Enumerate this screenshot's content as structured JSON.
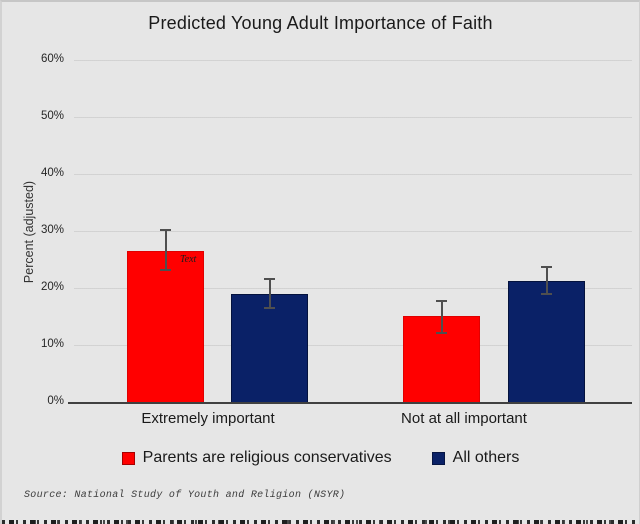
{
  "title": "Predicted Young Adult Importance of Faith",
  "source_note": "Source: National Study of Youth and Religion (NSYR)",
  "annotation_label": "Text",
  "colors": {
    "background": "#e6e6e6",
    "gridline": "#c9c9c9",
    "axis": "#404040",
    "error_bar": "#4f4f4f",
    "series_red": "#ff0000",
    "series_navy": "#0a2167"
  },
  "chart_data": {
    "type": "bar",
    "title": "Predicted Young Adult Importance of Faith",
    "ylabel": "Percent (adjusted)",
    "xlabel": "",
    "categories": [
      "Extremely important",
      "Not at all important"
    ],
    "series": [
      {
        "name": "Parents are religious conservatives",
        "color": "#ff0000",
        "border_color": "#e00000",
        "values": [
          26.6,
          15.2
        ],
        "ci_low": [
          23.3,
          12.2
        ],
        "ci_high": [
          30.3,
          17.9
        ]
      },
      {
        "name": "All others",
        "color": "#0a2167",
        "border_color": "#04123d",
        "values": [
          19.1,
          21.4
        ],
        "ci_low": [
          16.6,
          19.1
        ],
        "ci_high": [
          21.7,
          23.8
        ]
      }
    ],
    "ylim": [
      0,
      60
    ],
    "yticks": [
      "0%",
      "10%",
      "20%",
      "30%",
      "40%",
      "50%",
      "60%"
    ],
    "grid": true,
    "error_bars": true,
    "legend_position": "bottom"
  }
}
